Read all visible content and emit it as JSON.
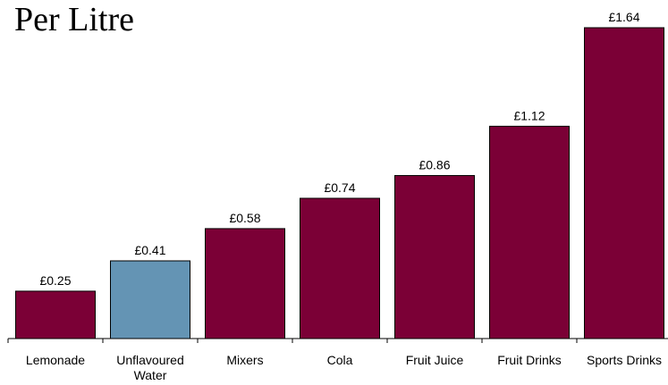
{
  "chart_data": {
    "type": "bar",
    "title": "Per Litre",
    "categories": [
      "Lemonade",
      "Unflavoured Water",
      "Mixers",
      "Cola",
      "Fruit Juice",
      "Fruit Drinks",
      "Sports Drinks"
    ],
    "category_label_lines": [
      [
        "Lemonade"
      ],
      [
        "Unflavoured",
        "Water"
      ],
      [
        "Mixers"
      ],
      [
        "Cola"
      ],
      [
        "Fruit Juice"
      ],
      [
        "Fruit Drinks"
      ],
      [
        "Sports Drinks"
      ]
    ],
    "values": [
      0.25,
      0.41,
      0.58,
      0.74,
      0.86,
      1.12,
      1.64
    ],
    "value_labels": [
      "£0.25",
      "£0.41",
      "£0.58",
      "£0.74",
      "£0.86",
      "£1.12",
      "£1.64"
    ],
    "ylim": [
      0,
      1.64
    ],
    "grid": false,
    "colors": {
      "default_bar": "#7b0036",
      "highlight_bar": "#6494b4"
    },
    "highlight_category": "Unflavoured Water"
  }
}
